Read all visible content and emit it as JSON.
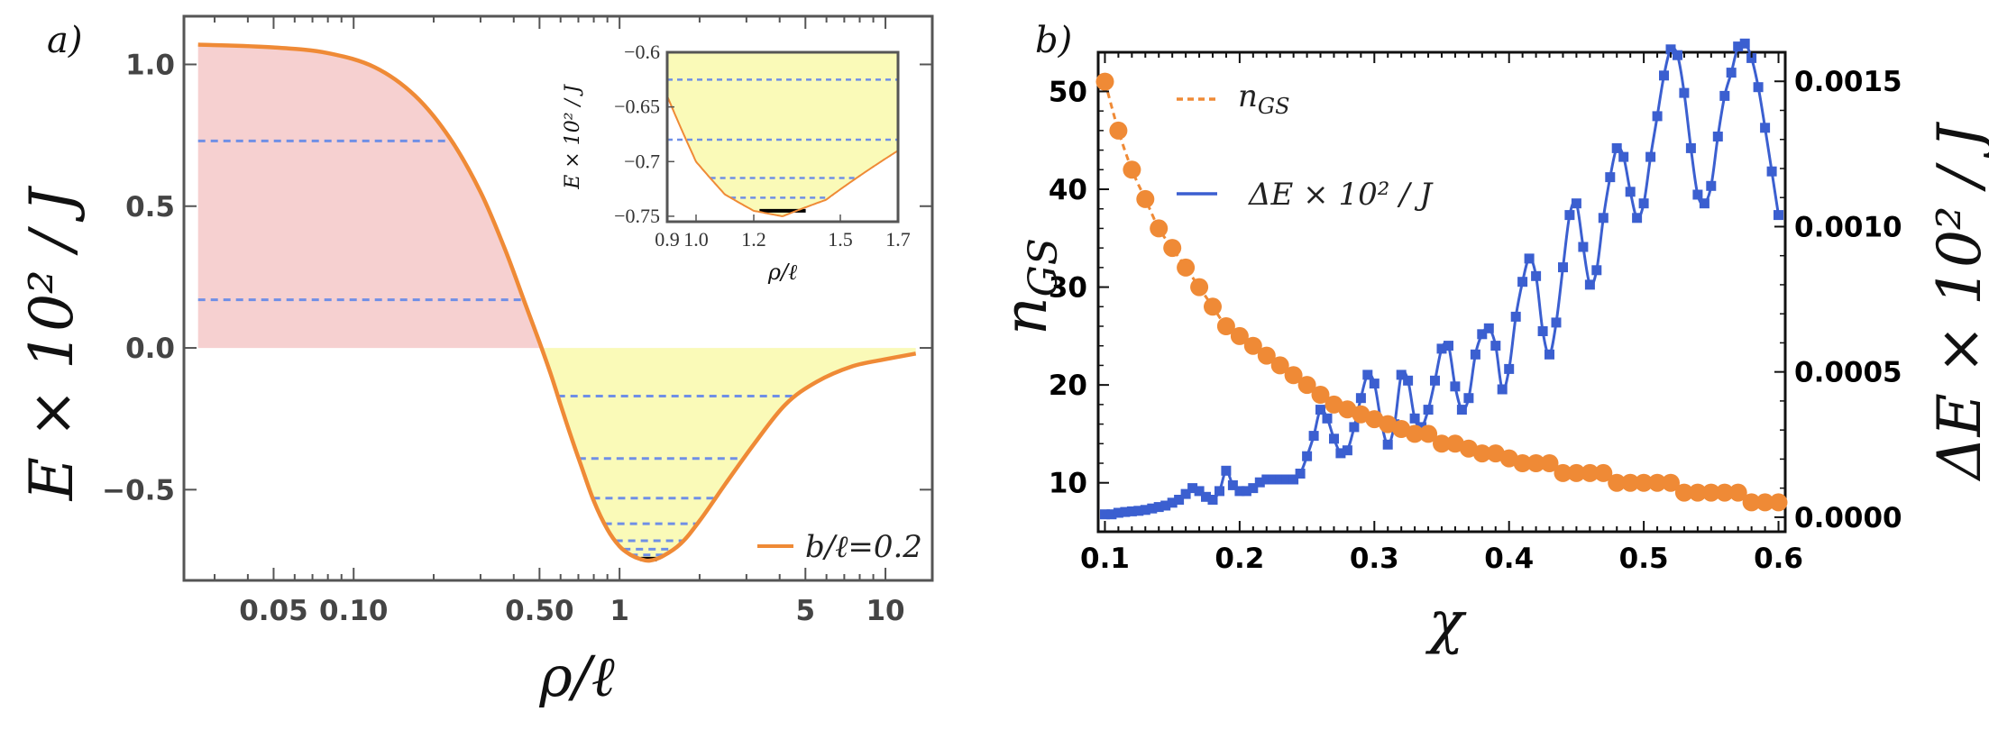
{
  "colors": {
    "orange": "#ef8a36",
    "blue": "#3b5fd0",
    "dash": "#6f8fe6",
    "pink": "#f6d0d0",
    "yellow": "#fafab8",
    "frame": "#555555"
  },
  "chart_data": [
    {
      "panel": "a)",
      "type": "line",
      "xscale": "log",
      "xlim": [
        0.023,
        15
      ],
      "ylim": [
        -0.82,
        1.17
      ],
      "xlabel": "ρ/ℓ",
      "ylabel": "E × 10² / J",
      "xticks": [
        "0.05",
        "0.10",
        "0.50",
        "1",
        "5",
        "10"
      ],
      "xtick_values": [
        0.05,
        0.1,
        0.5,
        1,
        5,
        10
      ],
      "yticks": [
        "-0.5",
        "0.0",
        "0.5",
        "1.0"
      ],
      "ytick_values": [
        -0.5,
        0.0,
        0.5,
        1.0
      ],
      "legend": "b/ℓ=0.2",
      "legend_position": "bottom-right",
      "curve": {
        "rho": [
          0.026,
          0.05,
          0.08,
          0.12,
          0.17,
          0.23,
          0.3,
          0.37,
          0.44,
          0.5,
          0.55,
          0.6,
          0.65,
          0.72,
          0.8,
          0.9,
          1.0,
          1.1,
          1.2,
          1.3,
          1.45,
          1.7,
          2.0,
          2.5,
          3.2,
          4.2,
          5.5,
          7.5,
          10.0,
          13.0
        ],
        "E": [
          1.07,
          1.06,
          1.04,
          0.99,
          0.89,
          0.74,
          0.55,
          0.35,
          0.16,
          0.02,
          -0.09,
          -0.2,
          -0.3,
          -0.42,
          -0.54,
          -0.64,
          -0.7,
          -0.73,
          -0.745,
          -0.75,
          -0.735,
          -0.69,
          -0.61,
          -0.48,
          -0.34,
          -0.2,
          -0.12,
          -0.065,
          -0.04,
          -0.02
        ]
      },
      "positive_levels": [
        0.73,
        0.17
      ],
      "negative_levels": [
        -0.17,
        -0.39,
        -0.53,
        -0.62,
        -0.68,
        -0.71,
        -0.73
      ],
      "ground_marker": {
        "rho": [
          1.2,
          1.38
        ],
        "E": -0.745
      },
      "inset": {
        "type": "line",
        "xlim": [
          0.9,
          1.7
        ],
        "ylim": [
          -0.755,
          -0.6
        ],
        "xticks": [
          "0.9",
          "1.0",
          "1.2",
          "1.5",
          "1.7"
        ],
        "xtick_values": [
          0.9,
          1.0,
          1.2,
          1.5,
          1.7
        ],
        "yticks": [
          "-0.6",
          "-0.65",
          "-0.7",
          "-0.75"
        ],
        "ytick_values": [
          -0.6,
          -0.65,
          -0.7,
          -0.75
        ],
        "xlabel": "ρ/ℓ",
        "ylabel": "E × 10² / J",
        "levels": [
          -0.625,
          -0.68,
          -0.715,
          -0.733
        ],
        "ground_marker": {
          "rho": [
            1.22,
            1.38
          ],
          "E": -0.745
        }
      }
    },
    {
      "panel": "b)",
      "type": "scatter",
      "xlabel": "χ",
      "xlim": [
        0.095,
        0.605
      ],
      "xticks": [
        "0.1",
        "0.2",
        "0.3",
        "0.4",
        "0.5",
        "0.6"
      ],
      "xtick_values": [
        0.1,
        0.2,
        0.3,
        0.4,
        0.5,
        0.6
      ],
      "left_axis": {
        "label": "n_GS",
        "ylim": [
          5,
          54
        ],
        "ticks": [
          "10",
          "20",
          "30",
          "40",
          "50"
        ],
        "tick_values": [
          10,
          20,
          30,
          40,
          50
        ]
      },
      "right_axis": {
        "label": "ΔE × 10² / J",
        "ylim": [
          -5e-05,
          0.0016
        ],
        "ticks": [
          "0.0000",
          "0.0005",
          "0.0010",
          "0.0015"
        ],
        "tick_values": [
          0.0,
          0.0005,
          0.001,
          0.0015
        ]
      },
      "legend": [
        "n_GS",
        "ΔE × 10² / J"
      ],
      "series": [
        {
          "name": "n_GS",
          "axis": "left",
          "x": [
            0.1,
            0.11,
            0.12,
            0.13,
            0.14,
            0.15,
            0.16,
            0.17,
            0.18,
            0.19,
            0.2,
            0.21,
            0.22,
            0.23,
            0.24,
            0.25,
            0.26,
            0.27,
            0.28,
            0.29,
            0.3,
            0.31,
            0.32,
            0.33,
            0.34,
            0.35,
            0.36,
            0.37,
            0.38,
            0.39,
            0.4,
            0.41,
            0.42,
            0.43,
            0.44,
            0.45,
            0.46,
            0.47,
            0.48,
            0.49,
            0.5,
            0.51,
            0.52,
            0.53,
            0.54,
            0.55,
            0.56,
            0.57,
            0.58,
            0.59,
            0.6
          ],
          "y": [
            51,
            46,
            42,
            39,
            36,
            34,
            32,
            30,
            28,
            26,
            25,
            24,
            23,
            22,
            21,
            20,
            19,
            18,
            17.5,
            17,
            16.5,
            16,
            15.5,
            15,
            15,
            14,
            14,
            13.5,
            13,
            13,
            12.5,
            12,
            12,
            12,
            11,
            11,
            11,
            11,
            10,
            10,
            10,
            10,
            10,
            9,
            9,
            9,
            9,
            9,
            8,
            8,
            8
          ]
        },
        {
          "name": "ΔE × 10² / J",
          "axis": "right",
          "x": [
            0.1,
            0.105,
            0.11,
            0.115,
            0.12,
            0.125,
            0.13,
            0.135,
            0.14,
            0.145,
            0.15,
            0.155,
            0.16,
            0.165,
            0.17,
            0.175,
            0.18,
            0.185,
            0.19,
            0.195,
            0.2,
            0.205,
            0.21,
            0.215,
            0.22,
            0.225,
            0.23,
            0.235,
            0.24,
            0.245,
            0.25,
            0.255,
            0.26,
            0.265,
            0.27,
            0.275,
            0.28,
            0.285,
            0.29,
            0.295,
            0.3,
            0.305,
            0.31,
            0.315,
            0.32,
            0.325,
            0.33,
            0.335,
            0.34,
            0.345,
            0.35,
            0.355,
            0.36,
            0.365,
            0.37,
            0.375,
            0.38,
            0.385,
            0.39,
            0.395,
            0.4,
            0.405,
            0.41,
            0.415,
            0.42,
            0.425,
            0.43,
            0.435,
            0.44,
            0.445,
            0.45,
            0.455,
            0.46,
            0.465,
            0.47,
            0.475,
            0.48,
            0.485,
            0.49,
            0.495,
            0.5,
            0.505,
            0.51,
            0.515,
            0.52,
            0.525,
            0.53,
            0.535,
            0.54,
            0.545,
            0.55,
            0.555,
            0.56,
            0.565,
            0.57,
            0.575,
            0.58,
            0.585,
            0.59,
            0.595,
            0.6
          ],
          "y": [
            1e-05,
            1e-05,
            1.5e-05,
            1.8e-05,
            2e-05,
            2.2e-05,
            2.5e-05,
            3e-05,
            3.5e-05,
            4e-05,
            5e-05,
            6e-05,
            8e-05,
            0.0001,
            9e-05,
            7e-05,
            6e-05,
            9e-05,
            0.00016,
            0.00011,
            9e-05,
            9e-05,
            0.0001,
            0.00012,
            0.00013,
            0.00013,
            0.00013,
            0.00013,
            0.00013,
            0.00015,
            0.00021,
            0.00028,
            0.00037,
            0.00034,
            0.00027,
            0.00022,
            0.00023,
            0.00031,
            0.00041,
            0.00049,
            0.00046,
            0.00033,
            0.00025,
            0.00032,
            0.00049,
            0.00047,
            0.00034,
            0.00031,
            0.00037,
            0.00047,
            0.00058,
            0.00059,
            0.00045,
            0.00037,
            0.00041,
            0.00056,
            0.00063,
            0.00065,
            0.00059,
            0.00044,
            0.00051,
            0.00069,
            0.00081,
            0.00089,
            0.00083,
            0.00064,
            0.00056,
            0.00067,
            0.00086,
            0.00104,
            0.00108,
            0.00093,
            0.0008,
            0.00085,
            0.00103,
            0.00117,
            0.00127,
            0.00124,
            0.00112,
            0.00103,
            0.00108,
            0.00124,
            0.00138,
            0.00152,
            0.00161,
            0.00159,
            0.00146,
            0.00127,
            0.00111,
            0.00108,
            0.00114,
            0.00131,
            0.00145,
            0.00153,
            0.00162,
            0.00163,
            0.00158,
            0.00148,
            0.00134,
            0.00119,
            0.00104
          ]
        }
      ]
    }
  ]
}
